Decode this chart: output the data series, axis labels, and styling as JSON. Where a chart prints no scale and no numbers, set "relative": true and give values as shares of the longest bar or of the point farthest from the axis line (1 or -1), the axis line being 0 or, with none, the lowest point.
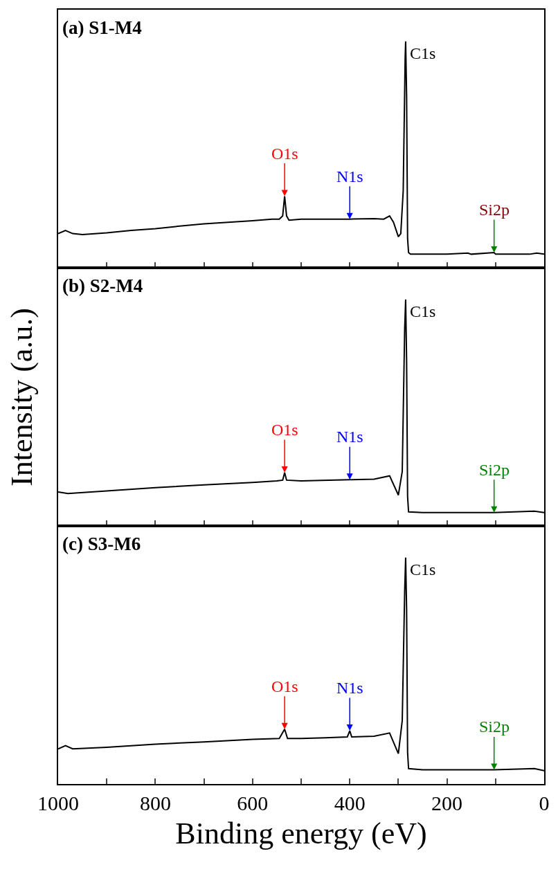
{
  "chart_data": [
    {
      "type": "line",
      "title": "(a) S1-M4",
      "relative": true,
      "xlim": [
        1000,
        0
      ],
      "xticks": [
        {
          "value": 1000,
          "label": null
        },
        {
          "value": 900,
          "label": null
        },
        {
          "value": 800,
          "label": null
        },
        {
          "value": 700,
          "label": null
        },
        {
          "value": 600,
          "label": null
        },
        {
          "value": 500,
          "label": null
        },
        {
          "value": 400,
          "label": null
        },
        {
          "value": 300,
          "label": null
        },
        {
          "value": 200,
          "label": null
        },
        {
          "value": 100,
          "label": null
        },
        {
          "value": 0,
          "label": null
        }
      ],
      "tick_labels": false,
      "x": [
        1000,
        985,
        970,
        950,
        900,
        850,
        800,
        750,
        700,
        650,
        600,
        560,
        545,
        538,
        534,
        530,
        525,
        500,
        450,
        400,
        350,
        330,
        318,
        310,
        300,
        295,
        290,
        286,
        285,
        283,
        281,
        279,
        275,
        200,
        157,
        150,
        103,
        100,
        30,
        15,
        0
      ],
      "series": [
        {
          "color": "#000000",
          "values": [
            0.151,
            0.165,
            0.151,
            0.147,
            0.154,
            0.165,
            0.173,
            0.184,
            0.194,
            0.201,
            0.208,
            0.215,
            0.215,
            0.229,
            0.316,
            0.229,
            0.21,
            0.215,
            0.215,
            0.215,
            0.217,
            0.215,
            0.229,
            0.201,
            0.137,
            0.151,
            0.34,
            0.93,
            1.0,
            0.76,
            0.13,
            0.067,
            0.06,
            0.06,
            0.065,
            0.06,
            0.067,
            0.06,
            0.06,
            0.065,
            0.06
          ]
        }
      ],
      "annotations": [
        {
          "text": "O1s",
          "x": 534,
          "y": 0.316
        },
        {
          "text": "N1s",
          "x": 400,
          "y": 0.215
        },
        {
          "text": "C1s",
          "x": 285,
          "y": 1.0
        },
        {
          "text": "Si2p",
          "x": 103,
          "y": 0.067
        }
      ]
    },
    {
      "type": "line",
      "title": "(b) S2-M4",
      "ylabel": "Intensity (a.u.)",
      "relative": true,
      "xlim": [
        1000,
        0
      ],
      "xticks": [
        {
          "value": 1000,
          "label": null
        },
        {
          "value": 900,
          "label": null
        },
        {
          "value": 800,
          "label": null
        },
        {
          "value": 700,
          "label": null
        },
        {
          "value": 600,
          "label": null
        },
        {
          "value": 500,
          "label": null
        },
        {
          "value": 400,
          "label": null
        },
        {
          "value": 300,
          "label": null
        },
        {
          "value": 200,
          "label": null
        },
        {
          "value": 100,
          "label": null
        },
        {
          "value": 0,
          "label": null
        }
      ],
      "tick_labels": false,
      "x": [
        1000,
        980,
        900,
        800,
        700,
        600,
        550,
        538,
        534,
        530,
        500,
        400,
        350,
        318,
        300,
        292,
        287,
        285,
        283,
        281,
        279,
        250,
        103,
        20,
        0
      ],
      "series": [
        {
          "color": "#000000",
          "values": [
            0.15,
            0.143,
            0.154,
            0.169,
            0.181,
            0.192,
            0.199,
            0.202,
            0.235,
            0.202,
            0.199,
            0.204,
            0.206,
            0.221,
            0.136,
            0.24,
            0.87,
            1.0,
            0.73,
            0.13,
            0.062,
            0.059,
            0.059,
            0.065,
            0.059
          ]
        }
      ],
      "annotations": [
        {
          "text": "O1s",
          "x": 534,
          "y": 0.235
        },
        {
          "text": "N1s",
          "x": 400,
          "y": 0.204
        },
        {
          "text": "C1s",
          "x": 285,
          "y": 1.0
        },
        {
          "text": "Si2p",
          "x": 103,
          "y": 0.059
        }
      ]
    },
    {
      "type": "line",
      "title": "(c) S3-M6",
      "xlabel": "Binding energy (eV)",
      "relative": true,
      "xlim": [
        1000,
        0
      ],
      "xticks": [
        1000,
        {
          "value": 900,
          "label": null
        },
        800,
        {
          "value": 700,
          "label": null
        },
        600,
        {
          "value": 500,
          "label": null
        },
        400,
        {
          "value": 300,
          "label": null
        },
        200,
        {
          "value": 100,
          "label": null
        },
        0
      ],
      "tick_labels": "x",
      "x": [
        1000,
        985,
        970,
        900,
        800,
        700,
        600,
        545,
        534,
        528,
        500,
        450,
        405,
        400,
        396,
        350,
        318,
        300,
        292,
        287,
        285,
        283,
        281,
        279,
        250,
        103,
        20,
        0
      ],
      "series": [
        {
          "color": "#000000",
          "values": [
            0.155,
            0.169,
            0.155,
            0.162,
            0.176,
            0.186,
            0.197,
            0.201,
            0.242,
            0.201,
            0.201,
            0.204,
            0.208,
            0.235,
            0.208,
            0.211,
            0.225,
            0.134,
            0.28,
            0.85,
            1.0,
            0.77,
            0.14,
            0.068,
            0.063,
            0.063,
            0.068,
            0.059
          ]
        }
      ],
      "annotations": [
        {
          "text": "O1s",
          "x": 534,
          "y": 0.242
        },
        {
          "text": "N1s",
          "x": 400,
          "y": 0.235
        },
        {
          "text": "C1s",
          "x": 285,
          "y": 1.0
        },
        {
          "text": "Si2p",
          "x": 103,
          "y": 0.063
        }
      ]
    }
  ]
}
